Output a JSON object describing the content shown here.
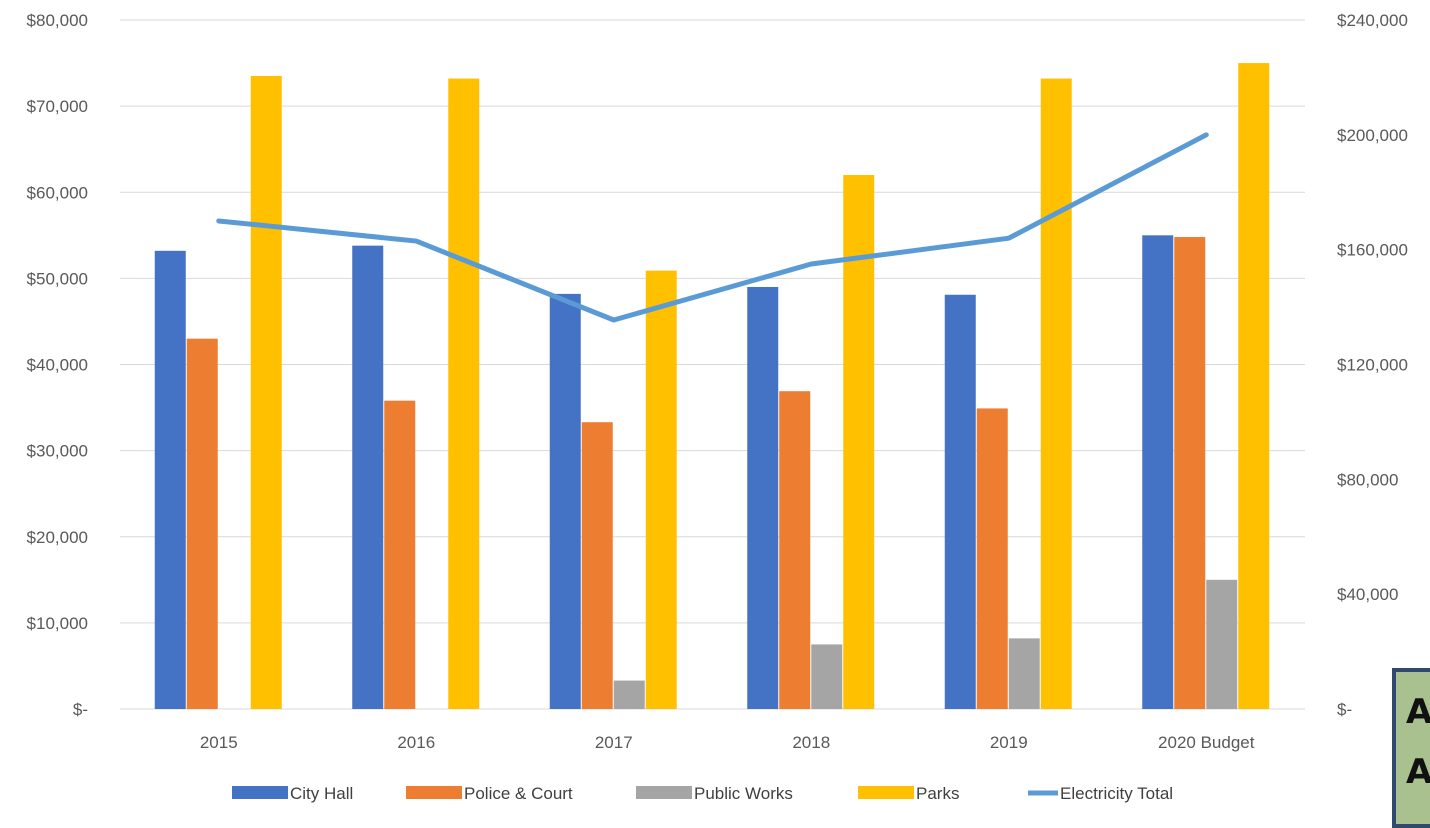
{
  "chart_data": {
    "type": "bar",
    "categories": [
      "2015",
      "2016",
      "2017",
      "2018",
      "2019",
      "2020 Budget"
    ],
    "series": [
      {
        "name": "City Hall",
        "type": "bar",
        "axis": "left",
        "color": "#4472c4",
        "values": [
          53200,
          53800,
          48200,
          49000,
          48100,
          55000
        ]
      },
      {
        "name": "Police & Court",
        "type": "bar",
        "axis": "left",
        "color": "#ed7d31",
        "values": [
          43000,
          35800,
          33300,
          36900,
          34900,
          54800
        ]
      },
      {
        "name": "Public Works",
        "type": "bar",
        "axis": "left",
        "color": "#a5a5a5",
        "values": [
          0,
          0,
          3300,
          7500,
          8200,
          15000
        ]
      },
      {
        "name": "Parks",
        "type": "bar",
        "axis": "left",
        "color": "#ffc000",
        "values": [
          73500,
          73200,
          50900,
          62000,
          73200,
          75000
        ]
      },
      {
        "name": "Electricity Total",
        "type": "line",
        "axis": "right",
        "color": "#5b9bd5",
        "values": [
          170000,
          163000,
          135500,
          155000,
          164000,
          200000
        ]
      }
    ],
    "ylim": [
      0,
      80000
    ],
    "y2lim": [
      0,
      240000
    ],
    "yticks": [
      "$-",
      "$10,000",
      "$20,000",
      "$30,000",
      "$40,000",
      "$50,000",
      "$60,000",
      "$70,000",
      "$80,000"
    ],
    "y2ticks": [
      "$-",
      "$40,000",
      "$80,000",
      "$120,000",
      "$160,000",
      "$200,000",
      "$240,000"
    ],
    "grid": true,
    "legend": "bottom"
  },
  "overlay": {
    "letters": [
      "A",
      "A"
    ]
  }
}
